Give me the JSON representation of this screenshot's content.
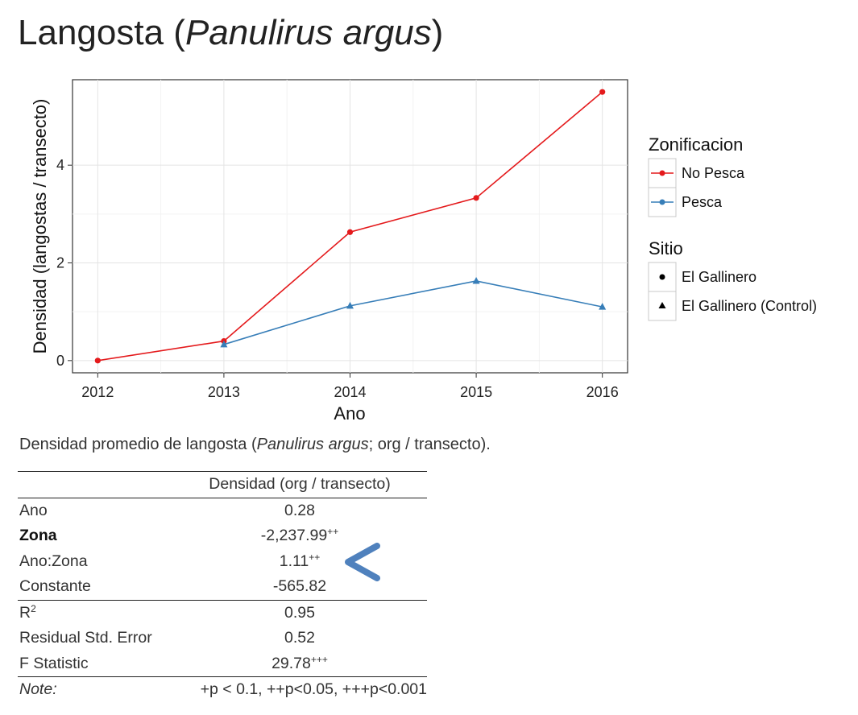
{
  "title": {
    "text_before": "Langosta (",
    "italic": "Panulirus argus",
    "text_after": ")"
  },
  "chart_data": {
    "type": "line",
    "x": [
      2012,
      2013,
      2014,
      2015,
      2016
    ],
    "xlabel": "Ano",
    "ylabel": "Densidad (langostas / transecto)",
    "xlim": [
      2011.8,
      2016.2
    ],
    "ylim": [
      -0.25,
      5.75
    ],
    "x_ticks": [
      2012,
      2013,
      2014,
      2015,
      2016
    ],
    "y_ticks": [
      0,
      2,
      4
    ],
    "grid": true,
    "series": [
      {
        "name": "No Pesca",
        "color": "#e41a1c",
        "marker": "circle",
        "x": [
          2012,
          2013,
          2014,
          2015,
          2016
        ],
        "y": [
          0.0,
          0.4,
          2.63,
          3.33,
          5.5
        ]
      },
      {
        "name": "Pesca",
        "color": "#377eb8",
        "marker": "triangle",
        "x": [
          2013,
          2014,
          2015,
          2016
        ],
        "y": [
          0.33,
          1.12,
          1.63,
          1.1
        ]
      }
    ],
    "legend": {
      "placement": "right",
      "color_title": "Zonificacion",
      "color_entries": [
        "No Pesca",
        "Pesca"
      ],
      "shape_title": "Sitio",
      "shape_entries": [
        "El Gallinero",
        "El Gallinero (Control)"
      ]
    }
  },
  "caption": {
    "before": "Densidad promedio de langosta (",
    "italic": "Panulirus argus",
    "after": "; org / transecto)."
  },
  "table": {
    "header": "Densidad (org / transecto)",
    "rows": [
      {
        "label": "Ano",
        "value": "0.28",
        "sup": ""
      },
      {
        "label": "Zona",
        "value": "-2,237.99",
        "sup": "++"
      },
      {
        "label": "Ano:Zona",
        "value": "1.11",
        "sup": "++"
      },
      {
        "label": "Constante",
        "value": "-565.82",
        "sup": ""
      }
    ],
    "stats": [
      {
        "label_base": "R",
        "label_sup": "2",
        "value": "0.95",
        "sup": ""
      },
      {
        "label": "Residual Std. Error",
        "value": "0.52",
        "sup": ""
      },
      {
        "label": "F Statistic",
        "value": "29.78",
        "sup": "+++"
      }
    ],
    "note_label": "Note:",
    "note_text": "+p < 0.1, ++p<0.05, +++p<0.001"
  },
  "annotation": {
    "arrow_color": "#4f81bd",
    "points_to": "Ano:Zona"
  }
}
